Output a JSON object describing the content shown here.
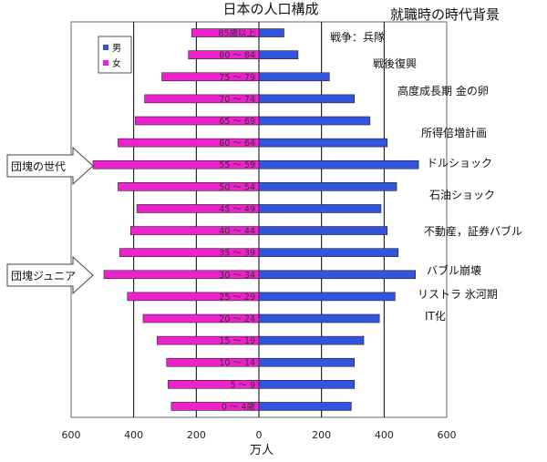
{
  "chart_data": {
    "type": "bar",
    "title": "日本の人口構成",
    "subtitle": "就職時の時代背景",
    "xlabel": "万人",
    "xlim": [
      -600,
      600
    ],
    "x_ticks": [
      "600",
      "400",
      "200",
      "0",
      "200",
      "400",
      "600"
    ],
    "x_tick_values": [
      -600,
      -400,
      -200,
      0,
      200,
      400,
      600
    ],
    "legend_position": "top-left",
    "categories": [
      "85歳以上",
      "80 ～ 84",
      "75 ～ 79",
      "70 ～ 74",
      "65 ～ 69",
      "60 ～ 64",
      "55 ～ 59",
      "50 ～ 54",
      "45 ～ 49",
      "40 ～ 44",
      "35 ～ 39",
      "30 ～ 34",
      "25 ～ 29",
      "20 ～ 24",
      "15 ～ 19",
      "10 ～ 14",
      "5 ～ 9",
      "0 ～ 4歳"
    ],
    "series": [
      {
        "name": "男",
        "color": "#3355dd",
        "direction": "right",
        "values": [
          80,
          125,
          225,
          305,
          355,
          410,
          510,
          440,
          390,
          410,
          445,
          500,
          435,
          385,
          335,
          305,
          305,
          295
        ]
      },
      {
        "name": "女",
        "color": "#ee22cc",
        "direction": "left",
        "values": [
          215,
          225,
          310,
          365,
          395,
          450,
          530,
          450,
          390,
          410,
          445,
          495,
          420,
          370,
          325,
          295,
          290,
          280
        ]
      }
    ],
    "annotations": [
      "戦争：兵隊",
      "戦後復興",
      "高度成長期 金の卵",
      "所得倍増計画",
      "ドルショック",
      "石油ショック",
      "不動産，証券バブル",
      "バブル崩壊",
      "リストラ 氷河期",
      "IT化"
    ],
    "arrows": [
      "団塊の世代",
      "団塊ジュニア"
    ]
  },
  "colors": {
    "male": "#3355dd",
    "female": "#ee22cc",
    "grid": "#000000"
  }
}
